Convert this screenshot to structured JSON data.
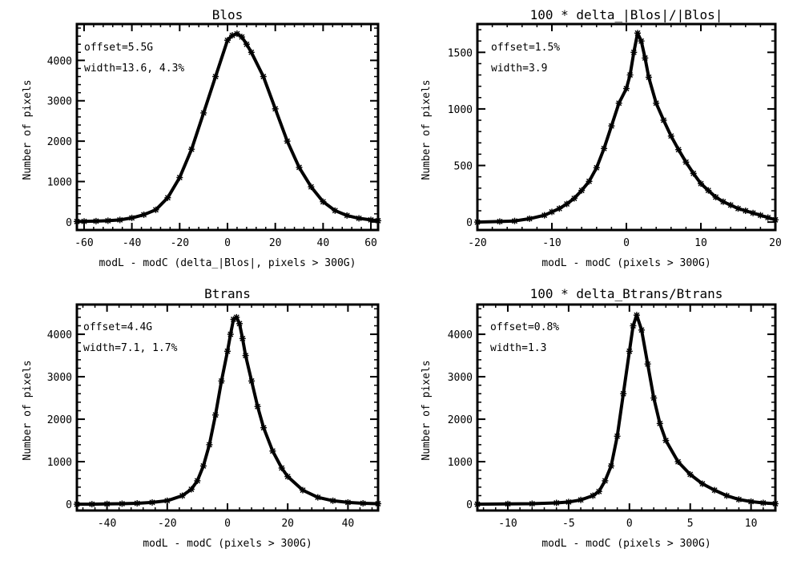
{
  "figure": {
    "background": "#ffffff",
    "ink": "#000000"
  },
  "chart_data": [
    {
      "type": "line",
      "title": "Blos",
      "xlabel": "modL - modC (delta_|Blos|, pixels > 300G)",
      "ylabel": "Number of pixels",
      "xlim": [
        -63,
        63
      ],
      "ylim": [
        -200,
        4900
      ],
      "xticks": [
        -60,
        -40,
        -20,
        0,
        20,
        40,
        60
      ],
      "yticks": [
        0,
        1000,
        2000,
        3000,
        4000
      ],
      "annotations": [
        "offset=5.5G",
        "width=13.6, 4.3%"
      ],
      "series": [
        {
          "name": "histogram",
          "x": [
            -63,
            -60,
            -55,
            -50,
            -45,
            -40,
            -35,
            -30,
            -25,
            -20,
            -15,
            -10,
            -5,
            0,
            2,
            4,
            6,
            8,
            10,
            15,
            20,
            25,
            30,
            35,
            40,
            45,
            50,
            55,
            60,
            63
          ],
          "y": [
            10,
            15,
            20,
            30,
            50,
            100,
            180,
            300,
            600,
            1100,
            1800,
            2700,
            3600,
            4500,
            4620,
            4660,
            4580,
            4400,
            4200,
            3600,
            2800,
            2000,
            1350,
            870,
            500,
            280,
            160,
            90,
            50,
            30
          ]
        }
      ]
    },
    {
      "type": "line",
      "title": "100 * delta_|Blos|/|Blos|",
      "xlabel": "modL - modC (pixels > 300G)",
      "ylabel": "Number of pixels",
      "xlim": [
        -20,
        20
      ],
      "ylim": [
        -70,
        1750
      ],
      "xticks": [
        -20,
        -10,
        0,
        10,
        20
      ],
      "yticks": [
        0,
        500,
        1000,
        1500
      ],
      "annotations": [
        "offset=1.5%",
        "width=3.9"
      ],
      "series": [
        {
          "name": "histogram",
          "x": [
            -20,
            -17,
            -15,
            -13,
            -11,
            -10,
            -9,
            -8,
            -7,
            -6,
            -5,
            -4,
            -3,
            -2,
            -1,
            0,
            0.5,
            1,
            1.5,
            2,
            2.5,
            3,
            4,
            5,
            6,
            7,
            8,
            9,
            10,
            11,
            12,
            13,
            14,
            15,
            16,
            17,
            18,
            19,
            20
          ],
          "y": [
            0,
            5,
            10,
            30,
            60,
            90,
            120,
            160,
            210,
            280,
            360,
            480,
            650,
            850,
            1050,
            1180,
            1300,
            1500,
            1670,
            1600,
            1450,
            1280,
            1050,
            900,
            760,
            640,
            530,
            430,
            340,
            280,
            220,
            180,
            150,
            120,
            100,
            80,
            60,
            40,
            20
          ]
        }
      ]
    },
    {
      "type": "line",
      "title": "Btrans",
      "xlabel": "modL - modC (pixels > 300G)",
      "ylabel": "Number of pixels",
      "xlim": [
        -50,
        50
      ],
      "ylim": [
        -150,
        4700
      ],
      "xticks": [
        -40,
        -20,
        0,
        20,
        40
      ],
      "yticks": [
        0,
        1000,
        2000,
        3000,
        4000
      ],
      "annotations": [
        "offset=4.4G",
        "width=7.1, 1.7%"
      ],
      "series": [
        {
          "name": "histogram",
          "x": [
            -50,
            -45,
            -40,
            -35,
            -30,
            -25,
            -20,
            -15,
            -12,
            -10,
            -8,
            -6,
            -4,
            -2,
            0,
            1,
            2,
            3,
            4,
            5,
            6,
            8,
            10,
            12,
            15,
            18,
            20,
            25,
            30,
            35,
            40,
            45,
            50
          ],
          "y": [
            0,
            0,
            5,
            10,
            20,
            40,
            80,
            200,
            350,
            550,
            900,
            1400,
            2100,
            2900,
            3600,
            4000,
            4350,
            4400,
            4250,
            3900,
            3500,
            2900,
            2300,
            1800,
            1250,
            850,
            650,
            330,
            160,
            80,
            40,
            20,
            10
          ]
        }
      ]
    },
    {
      "type": "line",
      "title": "100 * delta_Btrans/Btrans",
      "xlabel": "modL - modC (pixels > 300G)",
      "ylabel": "Number of pixels",
      "xlim": [
        -12.5,
        12
      ],
      "ylim": [
        -150,
        4700
      ],
      "xticks": [
        -10,
        -5,
        0,
        5,
        10
      ],
      "yticks": [
        0,
        1000,
        2000,
        3000,
        4000
      ],
      "annotations": [
        "offset=0.8%",
        "width=1.3"
      ],
      "series": [
        {
          "name": "histogram",
          "x": [
            -12.5,
            -10,
            -8,
            -6,
            -5,
            -4,
            -3,
            -2.5,
            -2,
            -1.5,
            -1,
            -0.5,
            0,
            0.3,
            0.6,
            1,
            1.5,
            2,
            2.5,
            3,
            4,
            5,
            6,
            7,
            8,
            9,
            10,
            11,
            12
          ],
          "y": [
            0,
            5,
            10,
            30,
            50,
            100,
            200,
            300,
            550,
            900,
            1600,
            2600,
            3600,
            4200,
            4450,
            4100,
            3300,
            2500,
            1900,
            1500,
            1000,
            700,
            480,
            330,
            200,
            110,
            60,
            30,
            10
          ]
        }
      ]
    }
  ]
}
